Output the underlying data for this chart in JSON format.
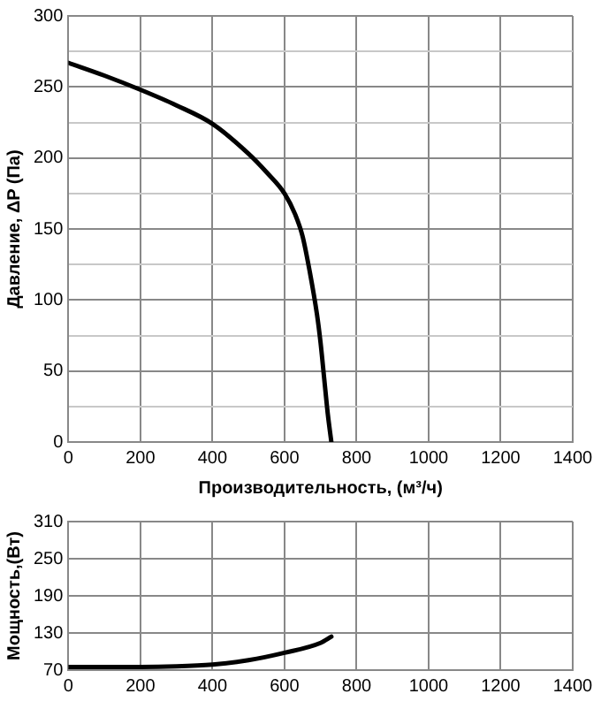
{
  "chart_data": [
    {
      "type": "line",
      "ylabel": "Давление, ΔP (Па)",
      "xlabel": "Производительность, (м³/ч)",
      "x": [
        0,
        100,
        200,
        300,
        400,
        500,
        550,
        600,
        630,
        650,
        670,
        690,
        700,
        710,
        720,
        730
      ],
      "series": [
        {
          "color": "#000000",
          "values": [
            267,
            258,
            248,
            237,
            224,
            203,
            190,
            175,
            160,
            145,
            120,
            90,
            70,
            45,
            20,
            0
          ]
        }
      ],
      "xlim": [
        0,
        1400
      ],
      "xticks": [
        0,
        200,
        400,
        600,
        800,
        1000,
        1200,
        1400
      ],
      "ylim": [
        0,
        300
      ],
      "yticks": [
        0,
        {
          "value": 25,
          "label": null
        },
        50,
        {
          "value": 75,
          "label": null
        },
        100,
        {
          "value": 125,
          "label": null
        },
        150,
        {
          "value": 175,
          "label": null
        },
        200,
        {
          "value": 225,
          "label": null
        },
        250,
        {
          "value": 275,
          "label": null
        },
        300
      ],
      "grid": true,
      "marker": "none",
      "line_style": "solid"
    },
    {
      "type": "line",
      "ylabel": "Мощность,(Вт)",
      "x": [
        0,
        200,
        300,
        400,
        500,
        600,
        700,
        730
      ],
      "series": [
        {
          "color": "#000000",
          "values": [
            75,
            75,
            76,
            79,
            86,
            98,
            114,
            124
          ]
        }
      ],
      "xlim": [
        0,
        1400
      ],
      "xticks": [
        0,
        200,
        400,
        600,
        800,
        1000,
        1200,
        1400
      ],
      "ylim": [
        70,
        310
      ],
      "yticks": [
        70,
        130,
        190,
        250,
        310
      ],
      "grid": true,
      "marker": "none",
      "line_style": "solid"
    }
  ]
}
